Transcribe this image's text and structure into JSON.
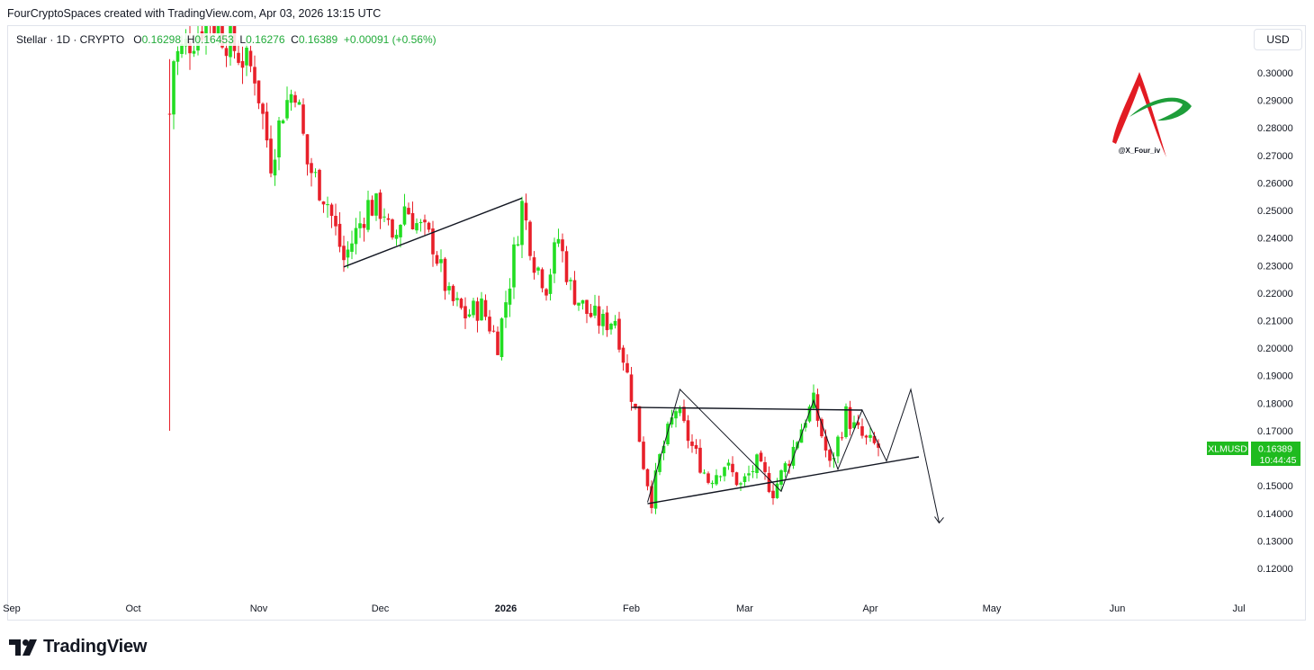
{
  "attribution": "FourCryptoSpaces created with TradingView.com, Apr 03, 2026 13:15 UTC",
  "legend": {
    "symbol": "Stellar · 1D · CRYPTO",
    "o_label": "O",
    "o_val": "0.16298",
    "h_label": "H",
    "h_val": "0.16453",
    "l_label": "L",
    "l_val": "0.16276",
    "c_label": "C",
    "c_val": "0.16389",
    "change": "+0.00091 (+0.56%)"
  },
  "currency_button": "USD",
  "watermark_handle": "@X_Four_iv",
  "price_badge": {
    "ticker": "XLMUSD",
    "price": "0.16389",
    "countdown": "10:44:45"
  },
  "footer_brand": "TradingView",
  "colors": {
    "up": "#22dd22",
    "down": "#e8202a",
    "badge": "#1fbb1f",
    "axis_text": "#131722"
  },
  "chart_data": {
    "type": "candlestick",
    "y_axis": {
      "min": 0.115,
      "max": 0.305,
      "ticks": [
        0.3,
        0.29,
        0.28,
        0.27,
        0.26,
        0.25,
        0.24,
        0.23,
        0.22,
        0.21,
        0.2,
        0.19,
        0.18,
        0.17,
        0.16,
        0.15,
        0.14,
        0.13,
        0.12
      ]
    },
    "x_axis": {
      "labels": [
        {
          "label": "Sep",
          "date": "2025-09-01",
          "bold": false
        },
        {
          "label": "Oct",
          "date": "2025-10-01",
          "bold": false
        },
        {
          "label": "Nov",
          "date": "2025-11-01",
          "bold": false
        },
        {
          "label": "Dec",
          "date": "2025-12-01",
          "bold": false
        },
        {
          "label": "2026",
          "date": "2026-01-01",
          "bold": true
        },
        {
          "label": "Feb",
          "date": "2026-02-01",
          "bold": false
        },
        {
          "label": "Mar",
          "date": "2026-03-01",
          "bold": false
        },
        {
          "label": "Apr",
          "date": "2026-04-01",
          "bold": false
        },
        {
          "label": "May",
          "date": "2026-05-01",
          "bold": false
        },
        {
          "label": "Jun",
          "date": "2026-06-01",
          "bold": false
        },
        {
          "label": "Jul",
          "date": "2026-07-01",
          "bold": false
        }
      ]
    },
    "price_path": [
      [
        "2025-10-10",
        0.285
      ],
      [
        "2025-10-11",
        0.305
      ],
      [
        "2025-10-20",
        0.32
      ],
      [
        "2025-10-28",
        0.305
      ],
      [
        "2025-10-31",
        0.3
      ],
      [
        "2025-11-04",
        0.268
      ],
      [
        "2025-11-07",
        0.287
      ],
      [
        "2025-11-10",
        0.295
      ],
      [
        "2025-11-13",
        0.267
      ],
      [
        "2025-11-18",
        0.253
      ],
      [
        "2025-11-22",
        0.232
      ],
      [
        "2025-11-25",
        0.242
      ],
      [
        "2025-11-28",
        0.252
      ],
      [
        "2025-12-02",
        0.25
      ],
      [
        "2025-12-04",
        0.236
      ],
      [
        "2025-12-07",
        0.252
      ],
      [
        "2025-12-10",
        0.245
      ],
      [
        "2025-12-14",
        0.238
      ],
      [
        "2025-12-18",
        0.218
      ],
      [
        "2025-12-22",
        0.212
      ],
      [
        "2025-12-26",
        0.215
      ],
      [
        "2025-12-30",
        0.202
      ],
      [
        "2026-01-02",
        0.225
      ],
      [
        "2026-01-05",
        0.252
      ],
      [
        "2026-01-08",
        0.232
      ],
      [
        "2026-01-11",
        0.223
      ],
      [
        "2026-01-14",
        0.24
      ],
      [
        "2026-01-17",
        0.222
      ],
      [
        "2026-01-21",
        0.213
      ],
      [
        "2026-01-25",
        0.209
      ],
      [
        "2026-01-28",
        0.211
      ],
      [
        "2026-01-31",
        0.19
      ],
      [
        "2026-02-02",
        0.177
      ],
      [
        "2026-02-04",
        0.158
      ],
      [
        "2026-02-06",
        0.145
      ],
      [
        "2026-02-08",
        0.16
      ],
      [
        "2026-02-12",
        0.178
      ],
      [
        "2026-02-16",
        0.164
      ],
      [
        "2026-02-20",
        0.152
      ],
      [
        "2026-02-24",
        0.158
      ],
      [
        "2026-02-28",
        0.15
      ],
      [
        "2026-03-04",
        0.158
      ],
      [
        "2026-03-08",
        0.148
      ],
      [
        "2026-03-12",
        0.16
      ],
      [
        "2026-03-16",
        0.175
      ],
      [
        "2026-03-18",
        0.18
      ],
      [
        "2026-03-22",
        0.157
      ],
      [
        "2026-03-26",
        0.176
      ],
      [
        "2026-03-28",
        0.171
      ],
      [
        "2026-03-31",
        0.166
      ],
      [
        "2026-04-03",
        0.16389
      ]
    ],
    "drawings": [
      {
        "name": "rising-trendline",
        "points": [
          [
            "2025-11-22",
            0.2295
          ],
          [
            "2026-01-05",
            0.2545
          ]
        ]
      },
      {
        "name": "resistance-line",
        "points": [
          [
            "2026-02-01",
            0.1785
          ],
          [
            "2026-03-30",
            0.1775
          ]
        ]
      },
      {
        "name": "triangle-support-line",
        "points": [
          [
            "2026-02-05",
            0.1435
          ],
          [
            "2026-04-13",
            0.1605
          ]
        ]
      },
      {
        "name": "zigzag-pattern",
        "points": [
          [
            "2026-02-05",
            0.144
          ],
          [
            "2026-02-13",
            0.185
          ],
          [
            "2026-03-10",
            0.148
          ],
          [
            "2026-03-18",
            0.181
          ],
          [
            "2026-03-24",
            0.156
          ],
          [
            "2026-03-30",
            0.1775
          ],
          [
            "2026-04-05",
            0.159
          ],
          [
            "2026-04-11",
            0.185
          ],
          [
            "2026-04-18",
            0.1365
          ]
        ]
      }
    ]
  }
}
